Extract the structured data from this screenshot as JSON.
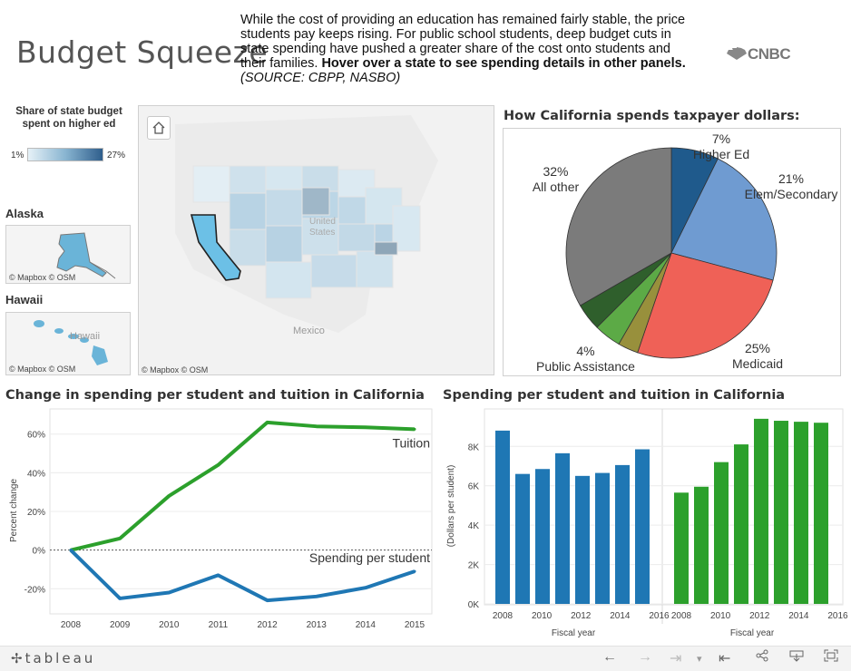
{
  "header": {
    "title": "Budget Squeeze",
    "intro_text": "While the cost of providing an education has remained fairly stable, the price students pay keeps rising. For public school students, deep budget cuts in state spending have pushed a greater share of the cost onto students and their families. ",
    "intro_bold": "Hover over a state to see spending details in other panels.",
    "intro_source": "(SOURCE: CBPP, NASBO)",
    "logo": "CNBC"
  },
  "legend": {
    "title_line1": "Share of state budget",
    "title_line2": "spent on higher ed",
    "min": "1%",
    "max": "27%"
  },
  "maps": {
    "alaska_label": "Alaska",
    "hawaii_label": "Hawaii",
    "attribution": "© Mapbox  © OSM",
    "us_label_1": "United",
    "us_label_2": "States",
    "mexico_label": "Mexico",
    "hawaii_place": "Hawaii",
    "selected_state": "California"
  },
  "pie": {
    "title": "How California spends taxpayer dollars:",
    "slices": [
      {
        "name": "Higher Ed",
        "pct": 7,
        "color": "#1f5a8c",
        "label": "7%"
      },
      {
        "name": "Elem/Secondary",
        "pct": 21,
        "color": "#6f9bd1",
        "label": "21%"
      },
      {
        "name": "Medicaid",
        "pct": 25,
        "color": "#ef6157",
        "label": "25%"
      },
      {
        "name": "Other (olive)",
        "pct": 3,
        "color": "#98903c",
        "label": ""
      },
      {
        "name": "Public Assistance",
        "pct": 4,
        "color": "#5caa46",
        "label": "4%"
      },
      {
        "name": "Other (dark green)",
        "pct": 4,
        "color": "#2f5f2c",
        "label": ""
      },
      {
        "name": "All other",
        "pct": 32,
        "color": "#7b7b7b",
        "label": "32%"
      }
    ]
  },
  "line_chart": {
    "title": "Change in spending per student and tuition in California",
    "ylabel": "Percent change",
    "yticks": [
      "60%",
      "40%",
      "20%",
      "0%",
      "-20%"
    ],
    "chart_data": {
      "type": "line",
      "x": [
        2008,
        2009,
        2010,
        2011,
        2012,
        2013,
        2014,
        2015
      ],
      "series": [
        {
          "name": "Tuition",
          "color": "#2ca02c",
          "values": [
            0,
            6,
            28,
            44,
            66,
            64,
            63.5,
            62.5
          ]
        },
        {
          "name": "Spending per student",
          "color": "#1f77b4",
          "values": [
            0,
            -25,
            -22,
            -13,
            -26,
            -24,
            -19.5,
            -11
          ]
        }
      ],
      "ylim": [
        -33,
        73
      ],
      "xlabel": "",
      "ylabel": "Percent change"
    }
  },
  "bar_chart": {
    "title": "Spending per student and tuition in California",
    "ylabel": "(Dollars per student)",
    "xlabel": "Fiscal year",
    "yticks": [
      "8K",
      "6K",
      "4K",
      "2K",
      "0K"
    ],
    "xticks": [
      "2008",
      "2010",
      "2012",
      "2014",
      "2016"
    ],
    "chart_data": {
      "type": "bar",
      "categories": [
        2008,
        2009,
        2010,
        2011,
        2012,
        2013,
        2014,
        2015
      ],
      "series": [
        {
          "name": "Spending per student",
          "color": "#1f77b4",
          "values": [
            8800,
            6600,
            6850,
            7650,
            6500,
            6650,
            7050,
            7850
          ]
        },
        {
          "name": "Tuition",
          "color": "#2ca02c",
          "values": [
            5650,
            5950,
            7200,
            8100,
            9400,
            9300,
            9250,
            9200
          ]
        }
      ],
      "ylim": [
        0,
        9900
      ]
    }
  },
  "toolbar": {
    "brand": "tableau",
    "undo": "←",
    "redo": "→",
    "revert": "⇥",
    "dropdown": "▾",
    "reset": "⇤",
    "share": "⋖",
    "download": "⤓",
    "fullscreen": "⛶"
  }
}
